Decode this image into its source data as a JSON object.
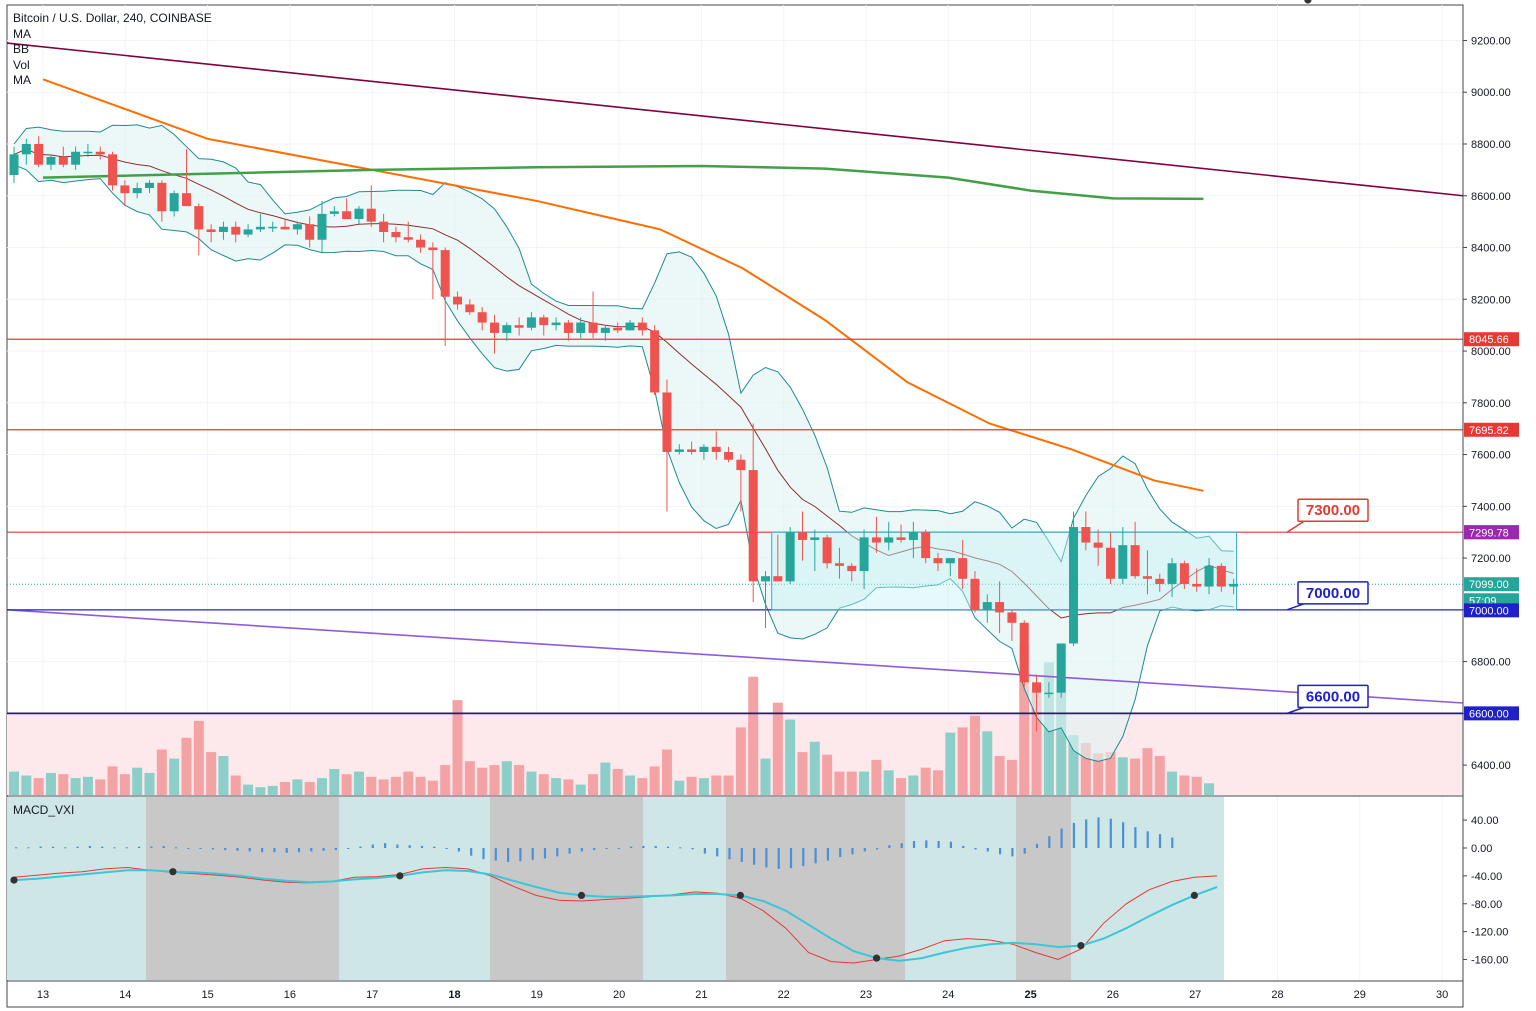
{
  "header": {
    "symbol_line": "Bitcoin / U.S. Dollar, 240, COINBASE",
    "indicators": [
      "MA",
      "BB",
      "Vol",
      "MA"
    ]
  },
  "macd_pane": {
    "title": "MACD_VXI"
  },
  "colors": {
    "up": "#26a69a",
    "down": "#ef5350",
    "bb": "#1e8a8f",
    "bb_fill": "#e0f3f2",
    "ma_fast": "#8b2f2f",
    "ma_orange": "#ff6d00",
    "ma_green": "#43a047",
    "trend_top": "#800040",
    "trend_bottom": "#8e5cd9",
    "red_level": "#e53935",
    "navy_level": "#2a1a7a",
    "blue_level": "#1f20c8"
  },
  "chart_data": {
    "type": "candlestick",
    "x_axis": {
      "tick_labels": [
        "13",
        "14",
        "15",
        "16",
        "17",
        "18",
        "19",
        "20",
        "21",
        "22",
        "23",
        "24",
        "25",
        "26",
        "27",
        "28",
        "29",
        "30"
      ],
      "bold_labels": [
        "18",
        "25"
      ]
    },
    "y_axis": {
      "min": 6300,
      "max": 9300,
      "tick_labels": [
        "9200.00",
        "9000.00",
        "8800.00",
        "8600.00",
        "8400.00",
        "8200.00",
        "8000.00",
        "7800.00",
        "7600.00",
        "7400.00",
        "7200.00",
        "7000.00",
        "6800.00",
        "6600.00",
        "6400.00"
      ],
      "tick_values": [
        9200,
        9000,
        8800,
        8600,
        8400,
        8200,
        8000,
        7800,
        7600,
        7400,
        7200,
        7000,
        6800,
        6600,
        6400
      ]
    },
    "candles_ohlc": [
      [
        8680,
        8790,
        8650,
        8760
      ],
      [
        8760,
        8820,
        8720,
        8800
      ],
      [
        8800,
        8830,
        8710,
        8720
      ],
      [
        8720,
        8760,
        8700,
        8750
      ],
      [
        8750,
        8790,
        8710,
        8720
      ],
      [
        8720,
        8790,
        8700,
        8770
      ],
      [
        8770,
        8800,
        8750,
        8770
      ],
      [
        8770,
        8790,
        8740,
        8760
      ],
      [
        8760,
        8770,
        8620,
        8640
      ],
      [
        8640,
        8660,
        8560,
        8610
      ],
      [
        8610,
        8650,
        8590,
        8630
      ],
      [
        8630,
        8660,
        8610,
        8650
      ],
      [
        8650,
        8660,
        8500,
        8540
      ],
      [
        8540,
        8620,
        8520,
        8610
      ],
      [
        8610,
        8780,
        8600,
        8560
      ],
      [
        8560,
        8570,
        8370,
        8470
      ],
      [
        8470,
        8490,
        8420,
        8460
      ],
      [
        8460,
        8500,
        8430,
        8480
      ],
      [
        8480,
        8500,
        8420,
        8450
      ],
      [
        8450,
        8490,
        8440,
        8470
      ],
      [
        8470,
        8530,
        8460,
        8480
      ],
      [
        8480,
        8500,
        8460,
        8480
      ],
      [
        8480,
        8510,
        8470,
        8470
      ],
      [
        8470,
        8500,
        8450,
        8490
      ],
      [
        8490,
        8520,
        8400,
        8430
      ],
      [
        8430,
        8580,
        8380,
        8530
      ],
      [
        8530,
        8560,
        8520,
        8540
      ],
      [
        8540,
        8590,
        8520,
        8510
      ],
      [
        8510,
        8560,
        8490,
        8550
      ],
      [
        8550,
        8640,
        8480,
        8500
      ],
      [
        8500,
        8530,
        8420,
        8460
      ],
      [
        8460,
        8480,
        8420,
        8440
      ],
      [
        8440,
        8500,
        8420,
        8430
      ],
      [
        8430,
        8450,
        8380,
        8400
      ],
      [
        8400,
        8420,
        8200,
        8390
      ],
      [
        8390,
        8400,
        8020,
        8210
      ],
      [
        8210,
        8230,
        8160,
        8180
      ],
      [
        8180,
        8200,
        8140,
        8150
      ],
      [
        8150,
        8170,
        8080,
        8110
      ],
      [
        8110,
        8140,
        7990,
        8070
      ],
      [
        8070,
        8110,
        8040,
        8100
      ],
      [
        8100,
        8130,
        8060,
        8090
      ],
      [
        8090,
        8150,
        8080,
        8130
      ],
      [
        8130,
        8140,
        8060,
        8100
      ],
      [
        8100,
        8130,
        8080,
        8110
      ],
      [
        8110,
        8120,
        8040,
        8070
      ],
      [
        8070,
        8130,
        8050,
        8110
      ],
      [
        8110,
        8230,
        8050,
        8070
      ],
      [
        8070,
        8100,
        8040,
        8090
      ],
      [
        8090,
        8110,
        8070,
        8080
      ],
      [
        8080,
        8120,
        8080,
        8110
      ],
      [
        8110,
        8130,
        8060,
        8080
      ],
      [
        8080,
        8100,
        7830,
        7840
      ],
      [
        7840,
        7890,
        7380,
        7610
      ],
      [
        7610,
        7640,
        7600,
        7620
      ],
      [
        7620,
        7650,
        7600,
        7610
      ],
      [
        7610,
        7640,
        7580,
        7630
      ],
      [
        7630,
        7690,
        7580,
        7610
      ],
      [
        7610,
        7630,
        7570,
        7580
      ],
      [
        7580,
        7600,
        7380,
        7540
      ],
      [
        7540,
        7720,
        7030,
        7110
      ],
      [
        7110,
        7150,
        6930,
        7130
      ],
      [
        7130,
        7290,
        7120,
        7110
      ],
      [
        7110,
        7320,
        7100,
        7300
      ],
      [
        7300,
        7380,
        7190,
        7270
      ],
      [
        7270,
        7310,
        7150,
        7280
      ],
      [
        7280,
        7290,
        7160,
        7180
      ],
      [
        7180,
        7240,
        7120,
        7170
      ],
      [
        7170,
        7180,
        7110,
        7150
      ],
      [
        7150,
        7310,
        7080,
        7280
      ],
      [
        7280,
        7360,
        7220,
        7260
      ],
      [
        7260,
        7340,
        7230,
        7280
      ],
      [
        7280,
        7330,
        7260,
        7270
      ],
      [
        7270,
        7340,
        7200,
        7300
      ],
      [
        7300,
        7310,
        7180,
        7200
      ],
      [
        7200,
        7220,
        7150,
        7180
      ],
      [
        7180,
        7190,
        7130,
        7200
      ],
      [
        7200,
        7270,
        7080,
        7120
      ],
      [
        7120,
        7150,
        6990,
        7000
      ],
      [
        7000,
        7060,
        6950,
        7030
      ],
      [
        7030,
        7110,
        6910,
        6990
      ],
      [
        6990,
        7000,
        6880,
        6950
      ],
      [
        6950,
        6960,
        6700,
        6720
      ],
      [
        6720,
        6750,
        6530,
        6680
      ],
      [
        6680,
        6720,
        6660,
        6680
      ],
      [
        6680,
        6780,
        6660,
        6870
      ],
      [
        6870,
        7380,
        6860,
        7320
      ],
      [
        7320,
        7380,
        7230,
        7260
      ],
      [
        7260,
        7310,
        7170,
        7240
      ],
      [
        7240,
        7300,
        7100,
        7120
      ],
      [
        7120,
        7320,
        7100,
        7250
      ],
      [
        7250,
        7340,
        7120,
        7130
      ],
      [
        7130,
        7230,
        7060,
        7120
      ],
      [
        7120,
        7140,
        7070,
        7100
      ],
      [
        7100,
        7200,
        7050,
        7180
      ],
      [
        7180,
        7190,
        7080,
        7100
      ],
      [
        7100,
        7160,
        7070,
        7090
      ],
      [
        7090,
        7200,
        7060,
        7170
      ],
      [
        7170,
        7180,
        7070,
        7090
      ],
      [
        7090,
        7120,
        7060,
        7100
      ]
    ],
    "horizontal_levels": [
      {
        "price": 8045.66,
        "label": "8045.66",
        "role": "red"
      },
      {
        "price": 7695.82,
        "label": "7695.82",
        "role": "red"
      },
      {
        "price": 7300.0,
        "label": "7300.00",
        "role": "red"
      },
      {
        "price": 7000.0,
        "label": "7000.00",
        "role": "blue"
      },
      {
        "price": 6600.0,
        "label": "6600.00",
        "role": "navy"
      }
    ],
    "axis_badges": [
      {
        "price": 8045.66,
        "label": "8045.66",
        "color": "#e53935"
      },
      {
        "price": 7695.82,
        "label": "7695.82",
        "color": "#e53935"
      },
      {
        "price": 7300.0,
        "label": "7300.00",
        "color": "#e53935"
      },
      {
        "price": 7299.78,
        "label": "7299.78",
        "color": "#9c27b0"
      },
      {
        "price": 7099.0,
        "label": "7099.00",
        "color": "#26a69a"
      },
      {
        "price": 7037.0,
        "label": "57:09",
        "color": "#26a69a"
      },
      {
        "price": 6998.0,
        "label": "7000.00",
        "color": "#1f20c8"
      },
      {
        "price": 6600.0,
        "label": "6600.00",
        "color": "#1f20c8"
      }
    ],
    "callouts": [
      {
        "label": "7300.00",
        "price": 7300,
        "border": "#e53935",
        "text_color": "#e53935"
      },
      {
        "label": "7000.00",
        "price": 7000,
        "border": "#1f20c8",
        "text_color": "#1f20c8"
      },
      {
        "label": "6600.00",
        "price": 6600,
        "border": "#1f20c8",
        "text_color": "#1f20c8"
      }
    ],
    "trendlines": [
      {
        "name": "",
        "points": [
          [
            13,
            9190
          ],
          [
            30,
            8600
          ]
        ]
      },
      {
        "name": "",
        "points": [
          [
            13,
            7000
          ],
          [
            30,
            6640
          ]
        ]
      }
    ],
    "rectangle": {
      "x_from": 22,
      "x_to": 27.6,
      "y_from": 7000,
      "y_to": 7300
    },
    "volume": [
      0.18,
      0.15,
      0.13,
      0.17,
      0.16,
      0.13,
      0.14,
      0.12,
      0.22,
      0.16,
      0.21,
      0.17,
      0.35,
      0.28,
      0.44,
      0.57,
      0.33,
      0.3,
      0.15,
      0.08,
      0.06,
      0.07,
      0.1,
      0.12,
      0.1,
      0.13,
      0.2,
      0.16,
      0.18,
      0.14,
      0.12,
      0.14,
      0.18,
      0.14,
      0.11,
      0.23,
      0.73,
      0.26,
      0.21,
      0.23,
      0.26,
      0.23,
      0.18,
      0.16,
      0.13,
      0.12,
      0.08,
      0.16,
      0.25,
      0.2,
      0.15,
      0.13,
      0.22,
      0.35,
      0.11,
      0.14,
      0.13,
      0.15,
      0.15,
      0.52,
      0.91,
      0.28,
      0.71,
      0.58,
      0.33,
      0.41,
      0.31,
      0.18,
      0.18,
      0.18,
      0.27,
      0.19,
      0.13,
      0.15,
      0.21,
      0.19,
      0.48,
      0.52,
      0.61,
      0.49,
      0.3,
      0.27,
      1.15,
      0.81,
      1.02,
      0.91,
      0.46,
      0.4,
      0.32,
      0.33,
      0.29,
      0.28,
      0.36,
      0.3,
      0.18,
      0.15,
      0.14,
      0.09
    ],
    "macd_y_axis": {
      "tick_labels": [
        "40.00",
        "0.00",
        "-40.00",
        "-80.00",
        "-120.00",
        "-160.00"
      ],
      "tick_values": [
        40,
        0,
        -40,
        -80,
        -120,
        -160
      ],
      "min": -180,
      "max": 60
    },
    "macd_histogram": [
      1,
      1,
      2,
      2,
      1,
      2,
      3,
      2,
      1,
      1,
      2,
      2,
      3,
      1,
      0,
      -1,
      -2,
      -3,
      -4,
      -5,
      -6,
      -6,
      -7,
      -6,
      -5,
      -4,
      -3,
      -1,
      2,
      5,
      7,
      5,
      4,
      3,
      2,
      0,
      -5,
      -11,
      -16,
      -18,
      -20,
      -19,
      -17,
      -15,
      -12,
      -8,
      -5,
      -3,
      -1,
      0,
      2,
      3,
      3,
      2,
      1,
      -2,
      -8,
      -12,
      -16,
      -20,
      -24,
      -28,
      -30,
      -29,
      -26,
      -22,
      -18,
      -13,
      -9,
      -5,
      -2,
      4,
      7,
      10,
      11,
      10,
      9,
      3,
      -2,
      -5,
      -9,
      -12,
      -8,
      6,
      17,
      28,
      36,
      41,
      44,
      42,
      37,
      30,
      24,
      20,
      15
    ],
    "macd_line": [
      -42,
      -39,
      -36,
      -34,
      -30,
      -28,
      -32,
      -35,
      -37,
      -39,
      -42,
      -46,
      -49,
      -50,
      -48,
      -42,
      -41,
      -38,
      -30,
      -28,
      -30,
      -40,
      -55,
      -68,
      -75,
      -76,
      -74,
      -72,
      -70,
      -67,
      -63,
      -65,
      -72,
      -90,
      -115,
      -150,
      -163,
      -165,
      -160,
      -155,
      -145,
      -133,
      -130,
      -132,
      -138,
      -150,
      -160,
      -145,
      -108,
      -80,
      -60,
      -48,
      -42,
      -40
    ],
    "signal_line": [
      -46,
      -44,
      -41,
      -38,
      -35,
      -32,
      -32,
      -34,
      -35,
      -37,
      -40,
      -44,
      -47,
      -49,
      -48,
      -45,
      -43,
      -40,
      -35,
      -32,
      -33,
      -38,
      -47,
      -56,
      -64,
      -68,
      -70,
      -70,
      -69,
      -68,
      -66,
      -66,
      -68,
      -76,
      -90,
      -110,
      -130,
      -148,
      -158,
      -162,
      -158,
      -150,
      -143,
      -138,
      -136,
      -138,
      -142,
      -140,
      -130,
      -115,
      -98,
      -82,
      -68,
      -56
    ],
    "cross_points_index": [
      0,
      7,
      17,
      25,
      32,
      38,
      47,
      52,
      57
    ]
  }
}
